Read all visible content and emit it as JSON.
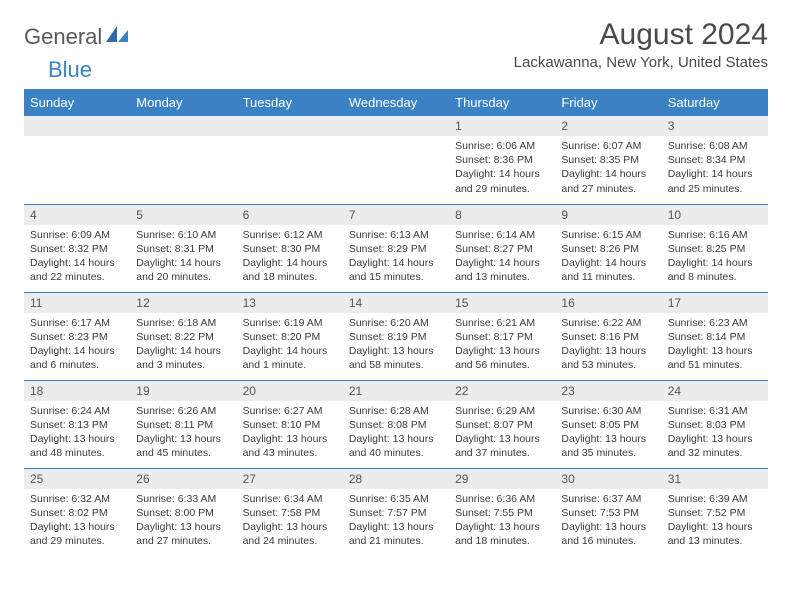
{
  "logo": {
    "part1": "General",
    "part2": "Blue"
  },
  "title": "August 2024",
  "location": "Lackawanna, New York, United States",
  "colors": {
    "header_bg": "#3b82c4",
    "header_text": "#ffffff",
    "daynum_bg": "#ececec",
    "row_border": "#3b82c4",
    "body_text": "#3a3a3a"
  },
  "day_headers": [
    "Sunday",
    "Monday",
    "Tuesday",
    "Wednesday",
    "Thursday",
    "Friday",
    "Saturday"
  ],
  "weeks": [
    [
      {
        "n": "",
        "lines": []
      },
      {
        "n": "",
        "lines": []
      },
      {
        "n": "",
        "lines": []
      },
      {
        "n": "",
        "lines": []
      },
      {
        "n": "1",
        "lines": [
          "Sunrise: 6:06 AM",
          "Sunset: 8:36 PM",
          "Daylight: 14 hours and 29 minutes."
        ]
      },
      {
        "n": "2",
        "lines": [
          "Sunrise: 6:07 AM",
          "Sunset: 8:35 PM",
          "Daylight: 14 hours and 27 minutes."
        ]
      },
      {
        "n": "3",
        "lines": [
          "Sunrise: 6:08 AM",
          "Sunset: 8:34 PM",
          "Daylight: 14 hours and 25 minutes."
        ]
      }
    ],
    [
      {
        "n": "4",
        "lines": [
          "Sunrise: 6:09 AM",
          "Sunset: 8:32 PM",
          "Daylight: 14 hours and 22 minutes."
        ]
      },
      {
        "n": "5",
        "lines": [
          "Sunrise: 6:10 AM",
          "Sunset: 8:31 PM",
          "Daylight: 14 hours and 20 minutes."
        ]
      },
      {
        "n": "6",
        "lines": [
          "Sunrise: 6:12 AM",
          "Sunset: 8:30 PM",
          "Daylight: 14 hours and 18 minutes."
        ]
      },
      {
        "n": "7",
        "lines": [
          "Sunrise: 6:13 AM",
          "Sunset: 8:29 PM",
          "Daylight: 14 hours and 15 minutes."
        ]
      },
      {
        "n": "8",
        "lines": [
          "Sunrise: 6:14 AM",
          "Sunset: 8:27 PM",
          "Daylight: 14 hours and 13 minutes."
        ]
      },
      {
        "n": "9",
        "lines": [
          "Sunrise: 6:15 AM",
          "Sunset: 8:26 PM",
          "Daylight: 14 hours and 11 minutes."
        ]
      },
      {
        "n": "10",
        "lines": [
          "Sunrise: 6:16 AM",
          "Sunset: 8:25 PM",
          "Daylight: 14 hours and 8 minutes."
        ]
      }
    ],
    [
      {
        "n": "11",
        "lines": [
          "Sunrise: 6:17 AM",
          "Sunset: 8:23 PM",
          "Daylight: 14 hours and 6 minutes."
        ]
      },
      {
        "n": "12",
        "lines": [
          "Sunrise: 6:18 AM",
          "Sunset: 8:22 PM",
          "Daylight: 14 hours and 3 minutes."
        ]
      },
      {
        "n": "13",
        "lines": [
          "Sunrise: 6:19 AM",
          "Sunset: 8:20 PM",
          "Daylight: 14 hours and 1 minute."
        ]
      },
      {
        "n": "14",
        "lines": [
          "Sunrise: 6:20 AM",
          "Sunset: 8:19 PM",
          "Daylight: 13 hours and 58 minutes."
        ]
      },
      {
        "n": "15",
        "lines": [
          "Sunrise: 6:21 AM",
          "Sunset: 8:17 PM",
          "Daylight: 13 hours and 56 minutes."
        ]
      },
      {
        "n": "16",
        "lines": [
          "Sunrise: 6:22 AM",
          "Sunset: 8:16 PM",
          "Daylight: 13 hours and 53 minutes."
        ]
      },
      {
        "n": "17",
        "lines": [
          "Sunrise: 6:23 AM",
          "Sunset: 8:14 PM",
          "Daylight: 13 hours and 51 minutes."
        ]
      }
    ],
    [
      {
        "n": "18",
        "lines": [
          "Sunrise: 6:24 AM",
          "Sunset: 8:13 PM",
          "Daylight: 13 hours and 48 minutes."
        ]
      },
      {
        "n": "19",
        "lines": [
          "Sunrise: 6:26 AM",
          "Sunset: 8:11 PM",
          "Daylight: 13 hours and 45 minutes."
        ]
      },
      {
        "n": "20",
        "lines": [
          "Sunrise: 6:27 AM",
          "Sunset: 8:10 PM",
          "Daylight: 13 hours and 43 minutes."
        ]
      },
      {
        "n": "21",
        "lines": [
          "Sunrise: 6:28 AM",
          "Sunset: 8:08 PM",
          "Daylight: 13 hours and 40 minutes."
        ]
      },
      {
        "n": "22",
        "lines": [
          "Sunrise: 6:29 AM",
          "Sunset: 8:07 PM",
          "Daylight: 13 hours and 37 minutes."
        ]
      },
      {
        "n": "23",
        "lines": [
          "Sunrise: 6:30 AM",
          "Sunset: 8:05 PM",
          "Daylight: 13 hours and 35 minutes."
        ]
      },
      {
        "n": "24",
        "lines": [
          "Sunrise: 6:31 AM",
          "Sunset: 8:03 PM",
          "Daylight: 13 hours and 32 minutes."
        ]
      }
    ],
    [
      {
        "n": "25",
        "lines": [
          "Sunrise: 6:32 AM",
          "Sunset: 8:02 PM",
          "Daylight: 13 hours and 29 minutes."
        ]
      },
      {
        "n": "26",
        "lines": [
          "Sunrise: 6:33 AM",
          "Sunset: 8:00 PM",
          "Daylight: 13 hours and 27 minutes."
        ]
      },
      {
        "n": "27",
        "lines": [
          "Sunrise: 6:34 AM",
          "Sunset: 7:58 PM",
          "Daylight: 13 hours and 24 minutes."
        ]
      },
      {
        "n": "28",
        "lines": [
          "Sunrise: 6:35 AM",
          "Sunset: 7:57 PM",
          "Daylight: 13 hours and 21 minutes."
        ]
      },
      {
        "n": "29",
        "lines": [
          "Sunrise: 6:36 AM",
          "Sunset: 7:55 PM",
          "Daylight: 13 hours and 18 minutes."
        ]
      },
      {
        "n": "30",
        "lines": [
          "Sunrise: 6:37 AM",
          "Sunset: 7:53 PM",
          "Daylight: 13 hours and 16 minutes."
        ]
      },
      {
        "n": "31",
        "lines": [
          "Sunrise: 6:39 AM",
          "Sunset: 7:52 PM",
          "Daylight: 13 hours and 13 minutes."
        ]
      }
    ]
  ]
}
